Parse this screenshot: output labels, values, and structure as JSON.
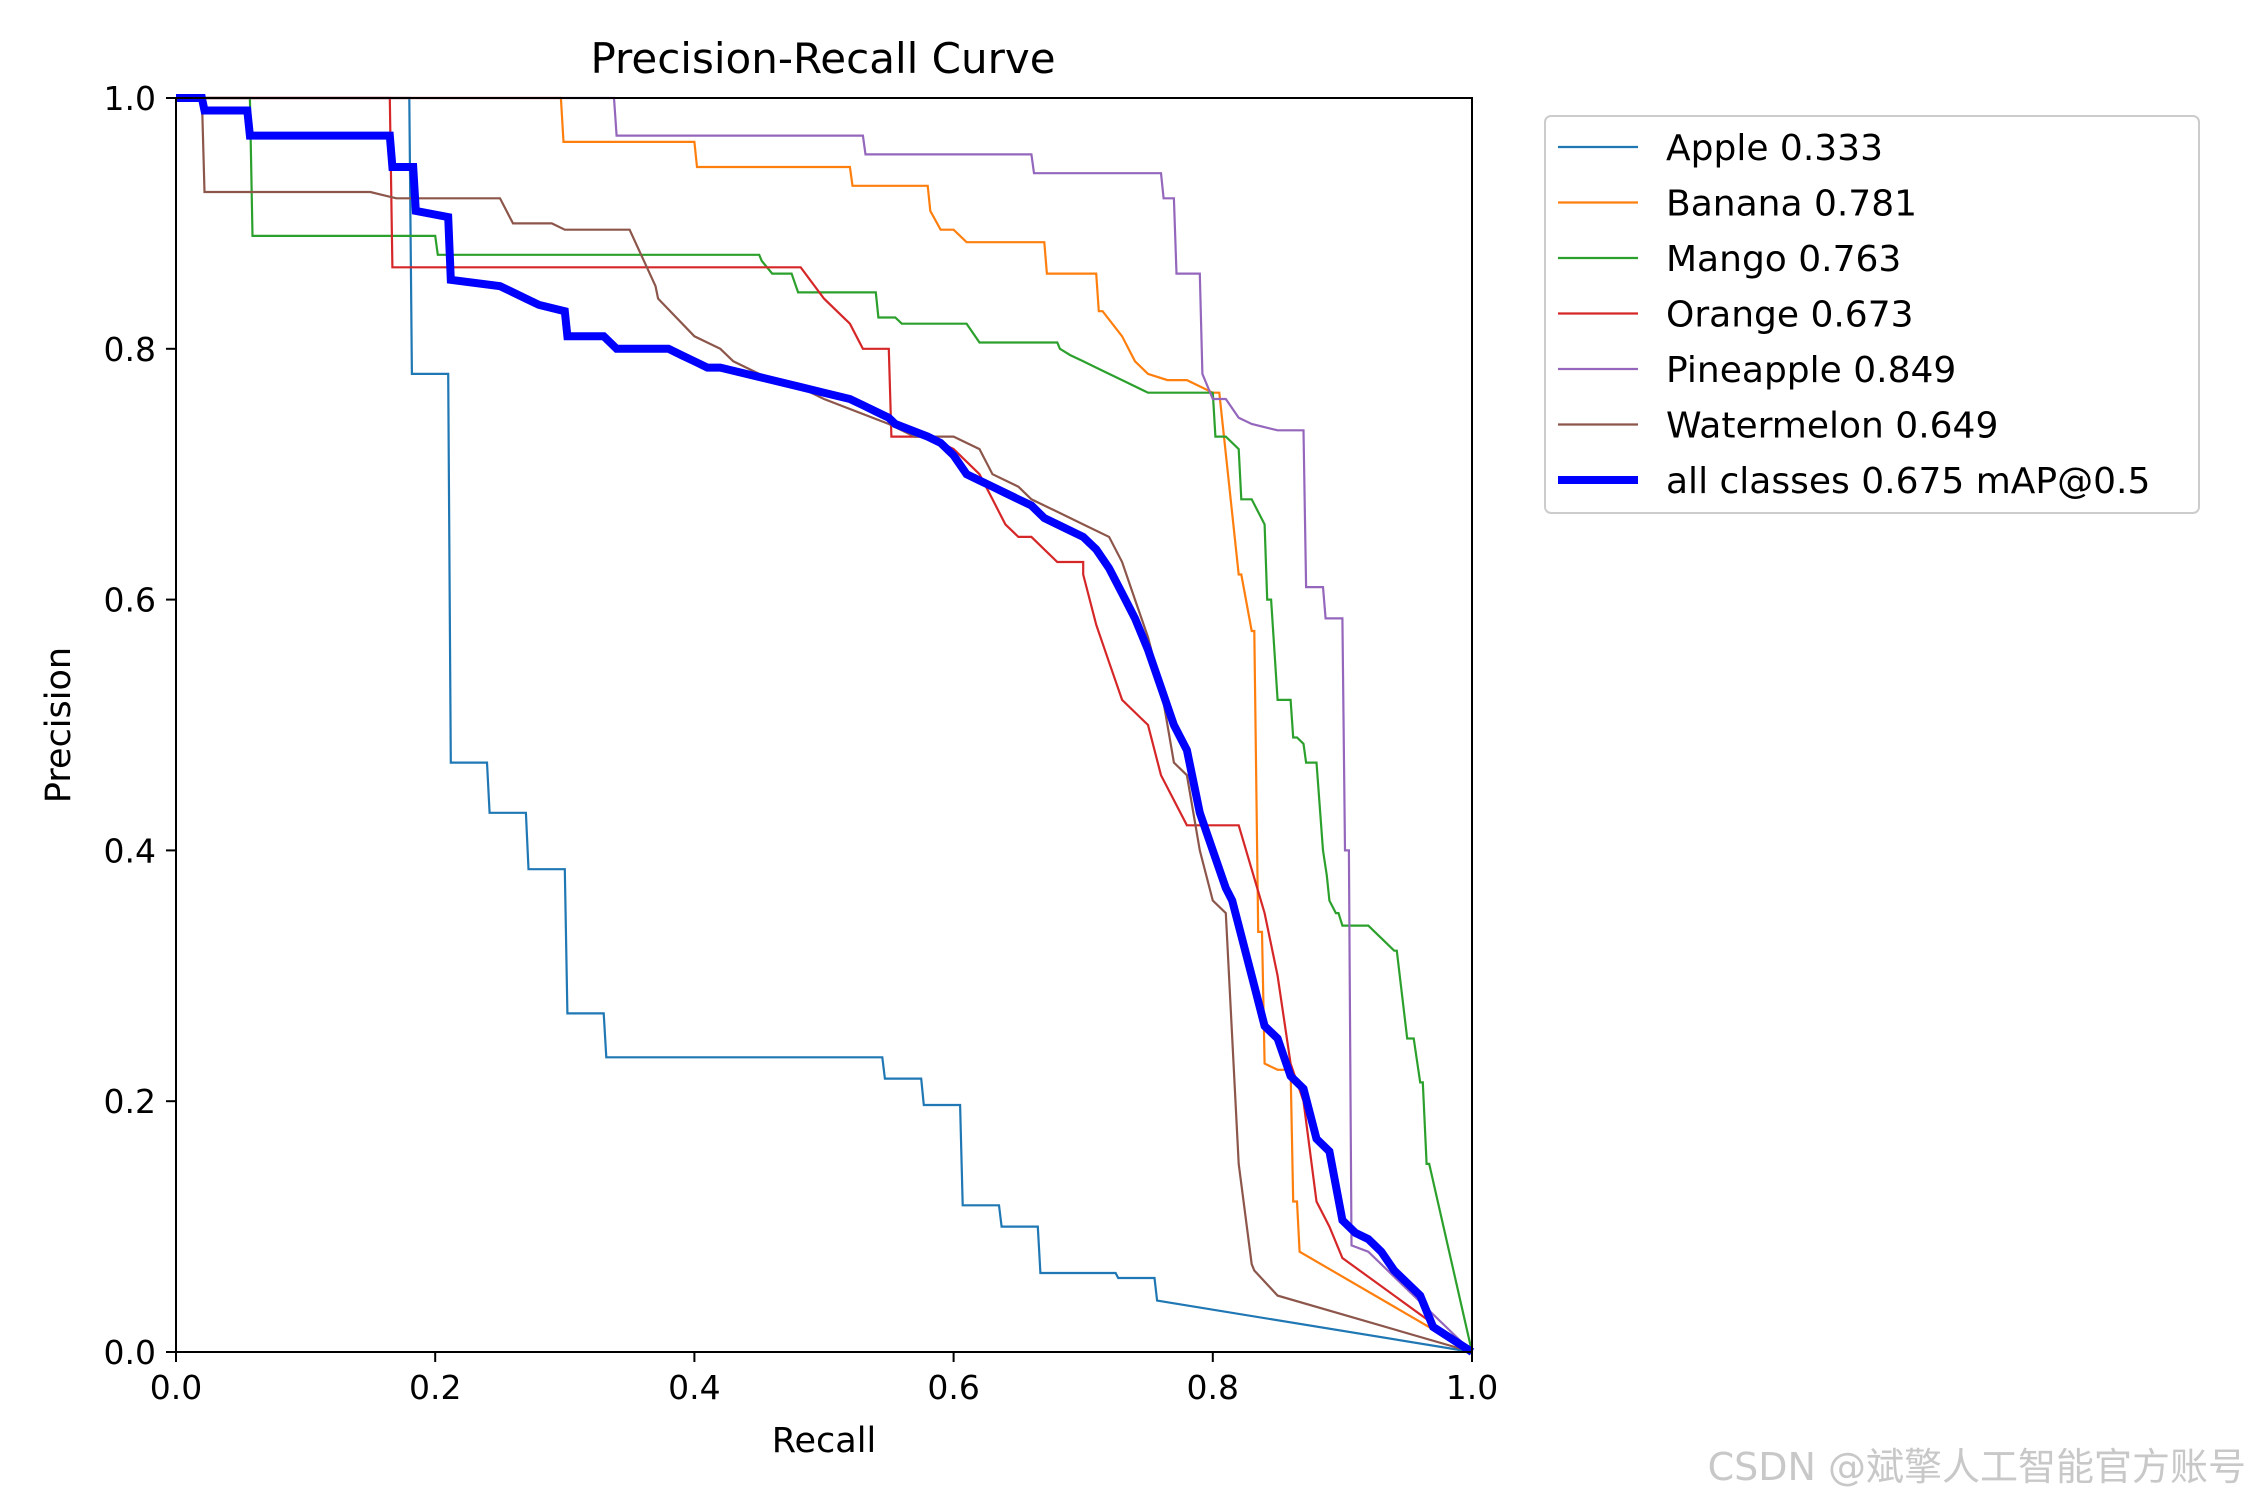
{
  "chart_data": {
    "type": "line",
    "title": "Precision-Recall Curve",
    "xlabel": "Recall",
    "ylabel": "Precision",
    "xlim": [
      0,
      1
    ],
    "ylim": [
      0,
      1
    ],
    "xticks": [
      "0.0",
      "0.2",
      "0.4",
      "0.6",
      "0.8",
      "1.0"
    ],
    "yticks": [
      "0.0",
      "0.2",
      "0.4",
      "0.6",
      "0.8",
      "1.0"
    ],
    "grid": false,
    "legend_position": "outside-right-top",
    "series": [
      {
        "name": "Apple 0.333",
        "color": "#1f77b4",
        "step": true,
        "x": [
          0,
          0.18,
          0.182,
          0.21,
          0.212,
          0.24,
          0.242,
          0.27,
          0.272,
          0.3,
          0.302,
          0.33,
          0.332,
          0.545,
          0.547,
          0.575,
          0.577,
          0.605,
          0.607,
          0.635,
          0.637,
          0.665,
          0.667,
          0.725,
          0.727,
          0.755,
          0.757,
          1.0
        ],
        "y": [
          1.0,
          1.0,
          0.78,
          0.78,
          0.47,
          0.47,
          0.43,
          0.43,
          0.385,
          0.385,
          0.27,
          0.27,
          0.235,
          0.235,
          0.218,
          0.218,
          0.197,
          0.197,
          0.117,
          0.117,
          0.1,
          0.1,
          0.063,
          0.063,
          0.059,
          0.059,
          0.041,
          0.0
        ]
      },
      {
        "name": "Banana 0.781",
        "color": "#ff7f0e",
        "step": true,
        "x": [
          0,
          0.297,
          0.299,
          0.4,
          0.402,
          0.52,
          0.522,
          0.58,
          0.582,
          0.59,
          0.6,
          0.61,
          0.612,
          0.67,
          0.672,
          0.71,
          0.712,
          0.715,
          0.73,
          0.74,
          0.75,
          0.765,
          0.78,
          0.79,
          0.8,
          0.805,
          0.82,
          0.822,
          0.83,
          0.832,
          0.835,
          0.838,
          0.84,
          0.85,
          0.86,
          0.862,
          0.865,
          0.867,
          1.0
        ],
        "y": [
          1.0,
          1.0,
          0.965,
          0.965,
          0.945,
          0.945,
          0.93,
          0.93,
          0.91,
          0.895,
          0.895,
          0.885,
          0.885,
          0.885,
          0.86,
          0.86,
          0.83,
          0.83,
          0.81,
          0.79,
          0.78,
          0.775,
          0.775,
          0.77,
          0.765,
          0.765,
          0.62,
          0.62,
          0.575,
          0.575,
          0.335,
          0.335,
          0.23,
          0.225,
          0.225,
          0.12,
          0.12,
          0.08,
          0.0
        ]
      },
      {
        "name": "Mango 0.763",
        "color": "#2ca02c",
        "step": true,
        "x": [
          0,
          0.057,
          0.059,
          0.2,
          0.202,
          0.45,
          0.452,
          0.46,
          0.475,
          0.48,
          0.482,
          0.54,
          0.542,
          0.555,
          0.56,
          0.58,
          0.61,
          0.62,
          0.622,
          0.68,
          0.682,
          0.69,
          0.7,
          0.71,
          0.72,
          0.73,
          0.74,
          0.75,
          0.77,
          0.8,
          0.802,
          0.81,
          0.82,
          0.822,
          0.83,
          0.84,
          0.842,
          0.845,
          0.85,
          0.86,
          0.862,
          0.865,
          0.87,
          0.872,
          0.88,
          0.885,
          0.888,
          0.89,
          0.895,
          0.897,
          0.9,
          0.92,
          0.93,
          0.94,
          0.942,
          0.95,
          0.955,
          0.96,
          0.962,
          0.965,
          0.967,
          1.0
        ],
        "y": [
          1.0,
          1.0,
          0.89,
          0.89,
          0.875,
          0.875,
          0.87,
          0.86,
          0.86,
          0.845,
          0.845,
          0.845,
          0.825,
          0.825,
          0.82,
          0.82,
          0.82,
          0.805,
          0.805,
          0.805,
          0.8,
          0.795,
          0.79,
          0.785,
          0.78,
          0.775,
          0.77,
          0.765,
          0.765,
          0.765,
          0.73,
          0.73,
          0.72,
          0.68,
          0.68,
          0.66,
          0.6,
          0.6,
          0.52,
          0.52,
          0.49,
          0.49,
          0.485,
          0.47,
          0.47,
          0.4,
          0.38,
          0.36,
          0.35,
          0.35,
          0.34,
          0.34,
          0.33,
          0.32,
          0.32,
          0.25,
          0.25,
          0.215,
          0.215,
          0.15,
          0.15,
          0.0
        ]
      },
      {
        "name": "Orange 0.673",
        "color": "#d62728",
        "step": true,
        "x": [
          0,
          0.165,
          0.167,
          0.48,
          0.482,
          0.5,
          0.52,
          0.53,
          0.55,
          0.552,
          0.58,
          0.6,
          0.62,
          0.63,
          0.64,
          0.65,
          0.66,
          0.67,
          0.68,
          0.7,
          0.7,
          0.7,
          0.71,
          0.72,
          0.73,
          0.75,
          0.76,
          0.78,
          0.8,
          0.82,
          0.84,
          0.85,
          0.86,
          0.87,
          0.88,
          0.89,
          0.9,
          1.0
        ],
        "y": [
          1.0,
          1.0,
          0.865,
          0.865,
          0.865,
          0.84,
          0.82,
          0.8,
          0.8,
          0.73,
          0.73,
          0.72,
          0.7,
          0.68,
          0.66,
          0.65,
          0.65,
          0.64,
          0.63,
          0.63,
          0.63,
          0.62,
          0.58,
          0.55,
          0.52,
          0.5,
          0.46,
          0.42,
          0.42,
          0.42,
          0.35,
          0.3,
          0.23,
          0.2,
          0.12,
          0.1,
          0.075,
          0.0
        ]
      },
      {
        "name": "Pineapple 0.849",
        "color": "#9467bd",
        "step": true,
        "x": [
          0,
          0.338,
          0.34,
          0.53,
          0.532,
          0.66,
          0.662,
          0.76,
          0.762,
          0.77,
          0.772,
          0.79,
          0.792,
          0.8,
          0.81,
          0.82,
          0.83,
          0.85,
          0.87,
          0.872,
          0.885,
          0.887,
          0.9,
          0.902,
          0.905,
          0.907,
          0.92,
          1.0
        ],
        "y": [
          1.0,
          1.0,
          0.97,
          0.97,
          0.955,
          0.955,
          0.94,
          0.94,
          0.92,
          0.92,
          0.86,
          0.86,
          0.78,
          0.76,
          0.76,
          0.745,
          0.74,
          0.735,
          0.735,
          0.61,
          0.61,
          0.585,
          0.585,
          0.4,
          0.4,
          0.085,
          0.08,
          0.0
        ]
      },
      {
        "name": "Watermelon 0.649",
        "color": "#8c564b",
        "step": true,
        "x": [
          0,
          0.02,
          0.022,
          0.15,
          0.17,
          0.25,
          0.26,
          0.29,
          0.3,
          0.35,
          0.37,
          0.372,
          0.4,
          0.42,
          0.43,
          0.45,
          0.48,
          0.5,
          0.55,
          0.57,
          0.6,
          0.62,
          0.63,
          0.65,
          0.66,
          0.68,
          0.7,
          0.72,
          0.73,
          0.74,
          0.75,
          0.76,
          0.77,
          0.78,
          0.79,
          0.8,
          0.81,
          0.82,
          0.83,
          0.832,
          0.85,
          1.0
        ],
        "y": [
          1.0,
          1.0,
          0.925,
          0.925,
          0.92,
          0.92,
          0.9,
          0.9,
          0.895,
          0.895,
          0.85,
          0.84,
          0.81,
          0.8,
          0.79,
          0.78,
          0.77,
          0.76,
          0.74,
          0.73,
          0.73,
          0.72,
          0.7,
          0.69,
          0.68,
          0.67,
          0.66,
          0.65,
          0.63,
          0.6,
          0.57,
          0.53,
          0.47,
          0.46,
          0.4,
          0.36,
          0.35,
          0.15,
          0.07,
          0.065,
          0.045,
          0.0
        ]
      },
      {
        "name": "all classes 0.675 mAP@0.5",
        "color": "#0000ff",
        "step": true,
        "bold": true,
        "x": [
          0,
          0.02,
          0.022,
          0.055,
          0.057,
          0.165,
          0.167,
          0.183,
          0.185,
          0.21,
          0.212,
          0.25,
          0.26,
          0.27,
          0.28,
          0.3,
          0.302,
          0.33,
          0.34,
          0.38,
          0.39,
          0.4,
          0.41,
          0.42,
          0.44,
          0.46,
          0.48,
          0.5,
          0.52,
          0.53,
          0.54,
          0.55,
          0.555,
          0.58,
          0.59,
          0.6,
          0.61,
          0.62,
          0.63,
          0.64,
          0.65,
          0.66,
          0.67,
          0.68,
          0.69,
          0.7,
          0.71,
          0.72,
          0.73,
          0.74,
          0.75,
          0.76,
          0.77,
          0.78,
          0.79,
          0.8,
          0.81,
          0.815,
          0.82,
          0.83,
          0.84,
          0.85,
          0.86,
          0.87,
          0.88,
          0.89,
          0.9,
          0.91,
          0.92,
          0.93,
          0.94,
          0.95,
          0.96,
          0.97,
          1.0
        ],
        "y": [
          1.0,
          1.0,
          0.99,
          0.99,
          0.97,
          0.97,
          0.945,
          0.945,
          0.91,
          0.905,
          0.855,
          0.85,
          0.845,
          0.84,
          0.835,
          0.83,
          0.81,
          0.81,
          0.8,
          0.8,
          0.795,
          0.79,
          0.785,
          0.785,
          0.78,
          0.775,
          0.77,
          0.765,
          0.76,
          0.755,
          0.75,
          0.745,
          0.74,
          0.73,
          0.725,
          0.715,
          0.7,
          0.695,
          0.69,
          0.685,
          0.68,
          0.675,
          0.665,
          0.66,
          0.655,
          0.65,
          0.64,
          0.625,
          0.605,
          0.585,
          0.56,
          0.53,
          0.5,
          0.48,
          0.43,
          0.4,
          0.37,
          0.36,
          0.34,
          0.3,
          0.26,
          0.25,
          0.22,
          0.21,
          0.17,
          0.16,
          0.105,
          0.095,
          0.09,
          0.08,
          0.065,
          0.055,
          0.045,
          0.02,
          0.0
        ]
      }
    ]
  },
  "watermark": "CSDN @斌擎人工智能官方账号"
}
